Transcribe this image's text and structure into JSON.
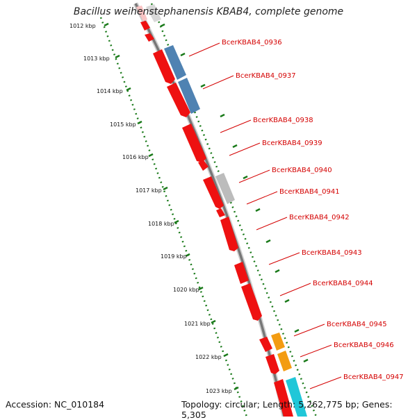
{
  "title": "Bacillus weihenstephanensis KBAB4, complete genome",
  "footer": {
    "accession": "Accession: NC_010184",
    "summary": "Topology: circular; Length: 5,262,775 bp; Genes: 5,305"
  },
  "colors": {
    "forward_cds": "#ee1111",
    "reverse_cds": "#ff0000",
    "steelblue": "#4f82b2",
    "gray": "#bcbcbc",
    "orange": "#f39c12",
    "cyan": "#20c7d8",
    "pink": "#f9c4c4",
    "backbone": "#777777",
    "tick_green": "#1a7a1a",
    "label_red": "#d40000"
  },
  "kbp_labels": [
    "1012 kbp",
    "1013 kbp",
    "1014 kbp",
    "1015 kbp",
    "1016 kbp",
    "1017 kbp",
    "1018 kbp",
    "1019 kbp",
    "1020 kbp",
    "1021 kbp",
    "1022 kbp",
    "1023 kbp"
  ],
  "gene_labels": [
    "BcerKBAB4_0936",
    "BcerKBAB4_0937",
    "BcerKBAB4_0938",
    "BcerKBAB4_0939",
    "BcerKBAB4_0940",
    "BcerKBAB4_0941",
    "BcerKBAB4_0942",
    "BcerKBAB4_0943",
    "BcerKBAB4_0944",
    "BcerKBAB4_0945",
    "BcerKBAB4_0946",
    "BcerKBAB4_0947"
  ]
}
